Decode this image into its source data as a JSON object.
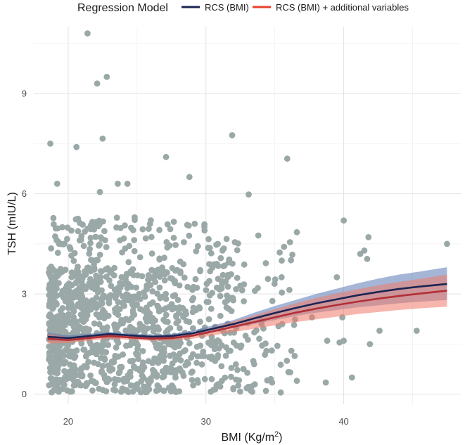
{
  "chart_data": {
    "type": "scatter",
    "xlabel": "BMI (Kg/m",
    "xlabel_superscript": "2",
    "xlabel_suffix": ")",
    "ylabel": "TSH (mIU/L)",
    "xlim": [
      17.5,
      48.5
    ],
    "ylim": [
      -0.3,
      11.0
    ],
    "x_ticks": [
      20,
      30,
      40
    ],
    "y_ticks": [
      0,
      3,
      6,
      9
    ],
    "grid": true,
    "legend": {
      "title": "Regression Model",
      "placement": "top",
      "entries": [
        {
          "label": "RCS (BMI)",
          "color": "#1c2452"
        },
        {
          "label": "RCS (BMI) + additional variables",
          "color": "#e8402b"
        }
      ]
    },
    "point_color": "#9aa8a7",
    "outlier_points": [
      {
        "x": 21.4,
        "y": 10.8
      },
      {
        "x": 22.1,
        "y": 9.3
      },
      {
        "x": 22.8,
        "y": 9.5
      },
      {
        "x": 18.7,
        "y": 7.5
      },
      {
        "x": 20.6,
        "y": 7.4
      },
      {
        "x": 22.5,
        "y": 7.65
      },
      {
        "x": 19.2,
        "y": 6.3
      },
      {
        "x": 22.3,
        "y": 6.05
      },
      {
        "x": 23.6,
        "y": 6.3
      },
      {
        "x": 24.3,
        "y": 6.3
      },
      {
        "x": 27.1,
        "y": 7.1
      },
      {
        "x": 28.8,
        "y": 6.5
      },
      {
        "x": 31.9,
        "y": 7.75
      },
      {
        "x": 33.1,
        "y": 5.98
      },
      {
        "x": 35.9,
        "y": 7.05
      },
      {
        "x": 40.0,
        "y": 5.2
      },
      {
        "x": 41.2,
        "y": 4.2
      },
      {
        "x": 41.5,
        "y": 4.3
      },
      {
        "x": 41.8,
        "y": 4.7
      },
      {
        "x": 41.7,
        "y": 4.05
      },
      {
        "x": 47.5,
        "y": 4.5
      },
      {
        "x": 45.3,
        "y": 1.9
      },
      {
        "x": 42.6,
        "y": 1.9
      },
      {
        "x": 39.5,
        "y": 3.5
      },
      {
        "x": 39.9,
        "y": 2.3
      },
      {
        "x": 40.0,
        "y": 1.6
      },
      {
        "x": 39.7,
        "y": 1.55
      },
      {
        "x": 38.8,
        "y": 1.6
      },
      {
        "x": 41.9,
        "y": 1.5
      },
      {
        "x": 38.7,
        "y": 0.35
      },
      {
        "x": 40.6,
        "y": 0.5
      },
      {
        "x": 36.6,
        "y": 4.85
      },
      {
        "x": 36.1,
        "y": 4.55
      },
      {
        "x": 35.5,
        "y": 4.0
      },
      {
        "x": 34.5,
        "y": 3.45
      },
      {
        "x": 33.8,
        "y": 4.75
      },
      {
        "x": 32.5,
        "y": 3.25
      },
      {
        "x": 31.2,
        "y": 4.3
      },
      {
        "x": 32.1,
        "y": 4.55
      },
      {
        "x": 30.8,
        "y": 3.9
      },
      {
        "x": 29.9,
        "y": 4.9
      },
      {
        "x": 36.6,
        "y": 0.4
      },
      {
        "x": 37.7,
        "y": 2.3
      },
      {
        "x": 36.2,
        "y": 1.3
      },
      {
        "x": 34.8,
        "y": 0.35
      },
      {
        "x": 33.5,
        "y": 0.9
      }
    ],
    "cluster": {
      "x_range": [
        18.6,
        36.5
      ],
      "count": 1450,
      "seed": 20240517
    },
    "series": [
      {
        "name": "RCS (BMI)",
        "color": "#1c2452",
        "band_color": "#5a78b4",
        "x": [
          18.5,
          20,
          21.5,
          23,
          24.5,
          26,
          27.5,
          29,
          30.5,
          32,
          33.5,
          35,
          36.5,
          38,
          39.5,
          41,
          42.5,
          44,
          45.5,
          47.5
        ],
        "y": [
          1.72,
          1.68,
          1.74,
          1.8,
          1.76,
          1.72,
          1.74,
          1.82,
          1.96,
          2.1,
          2.27,
          2.43,
          2.58,
          2.72,
          2.84,
          2.96,
          3.06,
          3.15,
          3.22,
          3.3
        ],
        "lower": [
          1.6,
          1.6,
          1.67,
          1.73,
          1.7,
          1.66,
          1.68,
          1.74,
          1.86,
          1.98,
          2.1,
          2.22,
          2.34,
          2.44,
          2.52,
          2.6,
          2.66,
          2.72,
          2.77,
          2.82
        ],
        "upper": [
          1.84,
          1.76,
          1.81,
          1.87,
          1.82,
          1.78,
          1.8,
          1.9,
          2.06,
          2.22,
          2.44,
          2.64,
          2.82,
          3.0,
          3.16,
          3.32,
          3.46,
          3.58,
          3.67,
          3.8
        ]
      },
      {
        "name": "RCS (BMI) + additional variables",
        "color": "#b22f36",
        "band_color": "#f07a6a",
        "x": [
          18.5,
          20,
          21.5,
          23,
          24.5,
          26,
          27.5,
          29,
          30.5,
          32,
          33.5,
          35,
          36.5,
          38,
          39.5,
          41,
          42.5,
          44,
          45.5,
          47.5
        ],
        "y": [
          1.66,
          1.62,
          1.68,
          1.74,
          1.7,
          1.66,
          1.68,
          1.75,
          1.88,
          2.02,
          2.16,
          2.3,
          2.44,
          2.56,
          2.67,
          2.77,
          2.86,
          2.94,
          3.01,
          3.1
        ],
        "lower": [
          1.52,
          1.53,
          1.6,
          1.66,
          1.63,
          1.6,
          1.61,
          1.66,
          1.76,
          1.86,
          1.96,
          2.06,
          2.16,
          2.24,
          2.32,
          2.4,
          2.46,
          2.52,
          2.57,
          2.62
        ],
        "upper": [
          1.8,
          1.71,
          1.76,
          1.82,
          1.77,
          1.72,
          1.75,
          1.84,
          2.0,
          2.18,
          2.36,
          2.54,
          2.72,
          2.88,
          3.02,
          3.14,
          3.26,
          3.36,
          3.45,
          3.58
        ]
      }
    ]
  }
}
